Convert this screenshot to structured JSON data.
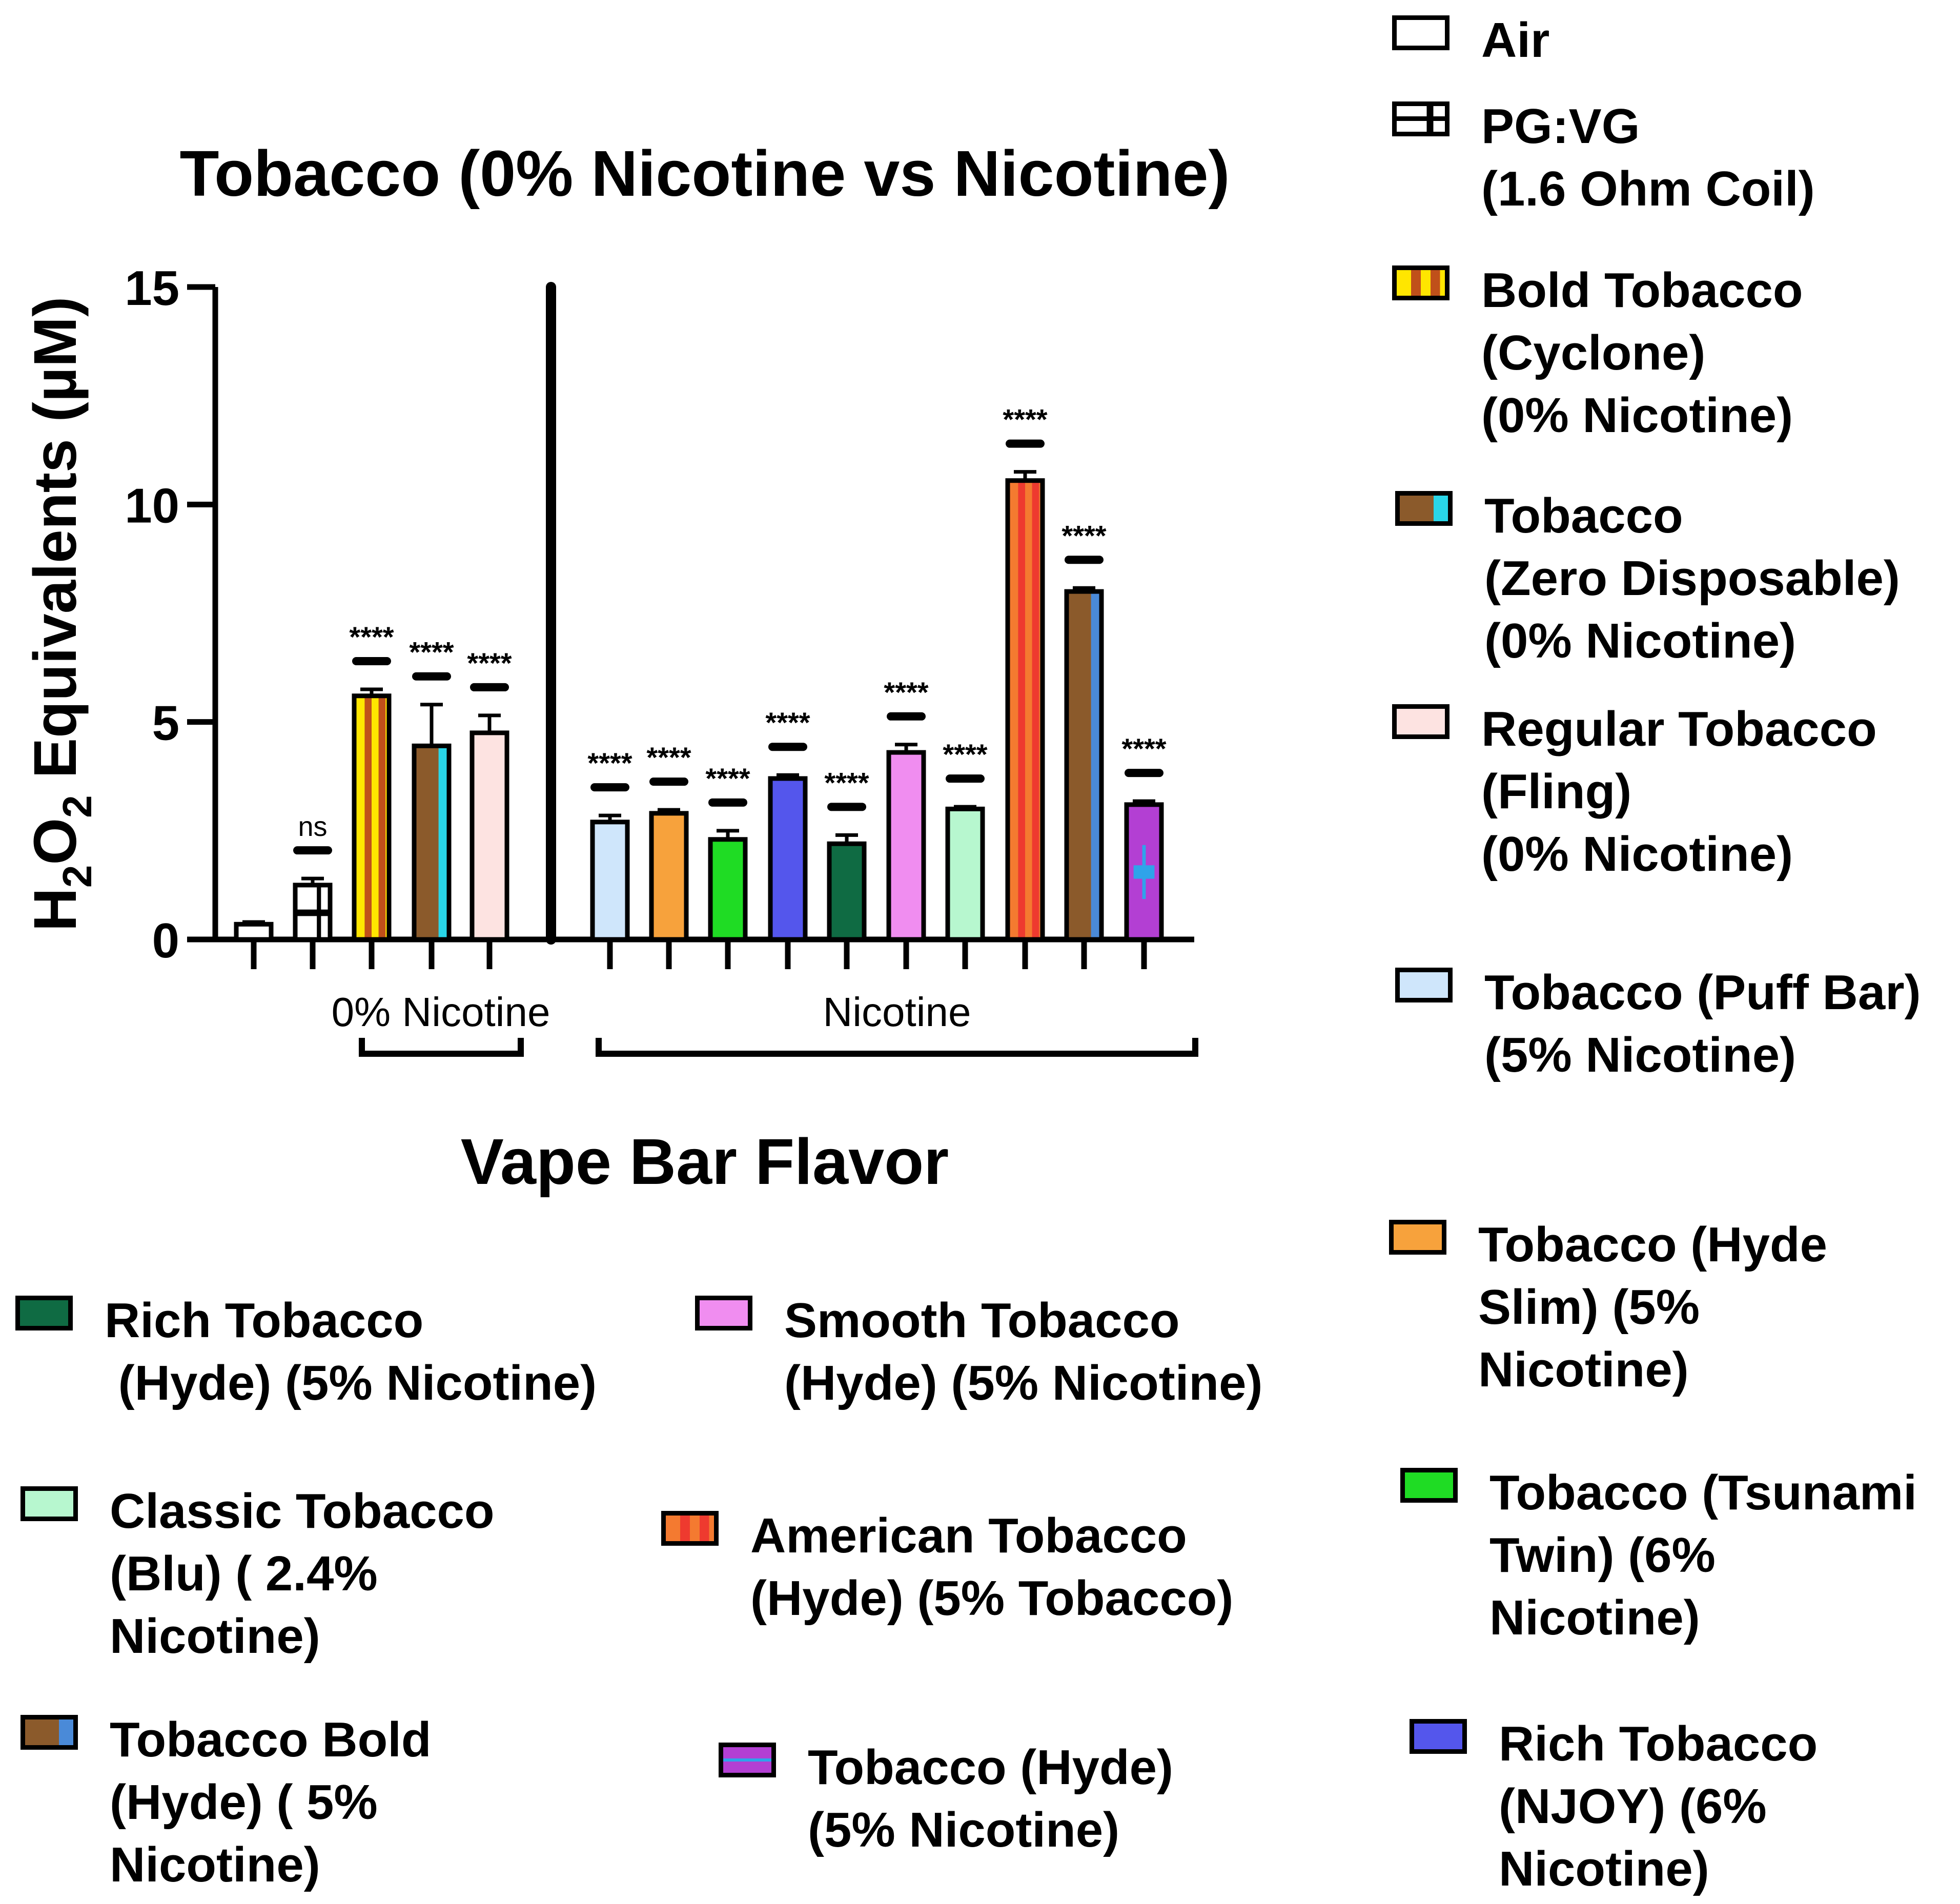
{
  "chart_data": {
    "type": "bar",
    "title": "Tobacco (0% Nicotine vs Nicotine)",
    "xlabel": "Vape Bar Flavor",
    "ylabel": "H2O2 Equivalents (µM)",
    "ylabel_main": "H",
    "ylabel_sub1": "2",
    "ylabel_mid": "O",
    "ylabel_sub2": "2",
    "ylabel_rest": " Equivalents (µM)",
    "ylim": [
      0,
      15
    ],
    "yticks": [
      "0",
      "5",
      "10",
      "15"
    ],
    "group_labels": {
      "zero": "0% Nicotine",
      "nic": "Nicotine"
    },
    "categories": [
      "Air",
      "PG:VG (1.6 Ohm Coil)",
      "Bold Tobacco (Cyclone) (0% Nicotine)",
      "Tobacco (Zero Disposable) (0% Nicotine)",
      "Regular Tobacco (Fling) (0% Nicotine)",
      "Tobacco (Puff Bar) (5% Nicotine)",
      "Tobacco (Hyde Slim) (5% Nicotine)",
      "Tobacco (Tsunami Twin) (6% Nicotine)",
      "Rich Tobacco (NJOY) (6% Nicotine)",
      "Smooth Tobacco (Hyde) (5% Nicotine)",
      "Rich Tobacco (Hyde) (5% Nicotine)",
      "Classic Tobacco (Blu) ( 2.4% Nicotine)",
      "American Tobacco (Hyde) (5% Tobacco)",
      "Tobacco Bold (Hyde) ( 5% Nicotine)",
      "Tobacco (Hyde) (5% Nicotine)"
    ],
    "values": [
      0.35,
      1.25,
      5.6,
      4.45,
      4.75,
      2.7,
      2.9,
      2.3,
      3.7,
      2.2,
      4.3,
      3.0,
      10.55,
      8.0,
      3.1
    ],
    "errors": [
      0.05,
      0.15,
      0.15,
      0.95,
      0.4,
      0.15,
      0.08,
      0.2,
      0.08,
      0.2,
      0.18,
      0.05,
      0.2,
      0.08,
      0.08
    ],
    "significance": [
      "",
      "ns",
      "****",
      "****",
      "****",
      "****",
      "****",
      "****",
      "****",
      "****",
      "****",
      "****",
      "****",
      "****",
      "****"
    ]
  },
  "legend": [
    {
      "id": "air",
      "text": "Air",
      "colors": [
        "#ffffff"
      ],
      "pattern": "plain"
    },
    {
      "id": "pgvg",
      "text": "PG:VG\n(1.6 Ohm Coil)",
      "colors": [
        "#ffffff"
      ],
      "pattern": "grid"
    },
    {
      "id": "bold-cyclone",
      "text": "Bold Tobacco\n(Cyclone)\n(0% Nicotine)",
      "colors": [
        "#ffe600",
        "#c0501a"
      ],
      "pattern": "stripes"
    },
    {
      "id": "zero-disposable",
      "text": "Tobacco\n(Zero Disposable)\n(0% Nicotine)",
      "colors": [
        "#29d6e8",
        "#8b5a2b"
      ],
      "pattern": "center"
    },
    {
      "id": "fling",
      "text": "Regular Tobacco\n(Fling)\n(0% Nicotine)",
      "colors": [
        "#fde3e1"
      ],
      "pattern": "plain"
    },
    {
      "id": "puff-bar",
      "text": "Tobacco (Puff Bar)\n(5% Nicotine)",
      "colors": [
        "#cfe6fb"
      ],
      "pattern": "plain"
    },
    {
      "id": "hyde-slim",
      "text": "Tobacco (Hyde\nSlim) (5%\nNicotine)",
      "colors": [
        "#f7a23c"
      ],
      "pattern": "plain"
    },
    {
      "id": "tsunami",
      "text": "Tobacco (Tsunami\nTwin) (6%\nNicotine)",
      "colors": [
        "#1fdc24"
      ],
      "pattern": "plain"
    },
    {
      "id": "njoy",
      "text": "Rich Tobacco\n(NJOY) (6%\nNicotine)",
      "colors": [
        "#5456ec"
      ],
      "pattern": "plain"
    },
    {
      "id": "rich-hyde",
      "text": "Rich Tobacco\n (Hyde) (5% Nicotine)",
      "colors": [
        "#0f6b43"
      ],
      "pattern": "plain"
    },
    {
      "id": "smooth-hyde",
      "text": "Smooth Tobacco\n(Hyde) (5% Nicotine)",
      "colors": [
        "#f08df0"
      ],
      "pattern": "plain"
    },
    {
      "id": "blu",
      "text": "Classic Tobacco\n(Blu) ( 2.4%\nNicotine)",
      "colors": [
        "#b7f7cf"
      ],
      "pattern": "plain"
    },
    {
      "id": "american-hyde",
      "text": "American Tobacco\n(Hyde) (5% Tobacco)",
      "colors": [
        "#f47a30",
        "#ee3a2f"
      ],
      "pattern": "stripes"
    },
    {
      "id": "bold-hyde",
      "text": "Tobacco Bold\n(Hyde) ( 5%\nNicotine)",
      "colors": [
        "#4a8ad8",
        "#8b5a2b"
      ],
      "pattern": "center"
    },
    {
      "id": "hyde",
      "text": "Tobacco (Hyde)\n(5% Nicotine)",
      "colors": [
        "#b33fd3",
        "#2fa3ea"
      ],
      "pattern": "cross"
    }
  ]
}
